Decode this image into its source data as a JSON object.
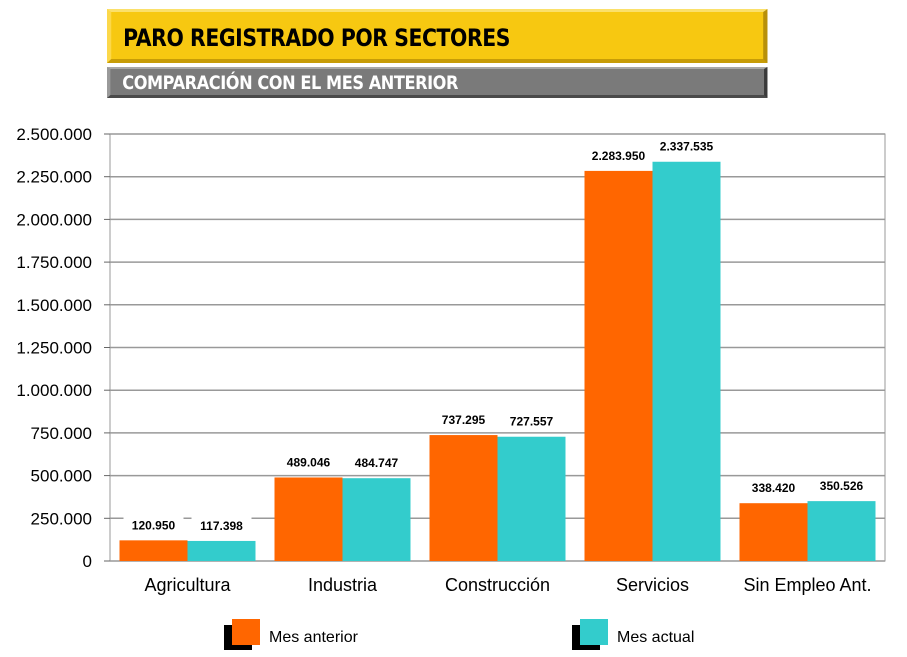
{
  "chart_data": {
    "type": "bar",
    "title": "PARO REGISTRADO POR SECTORES",
    "subtitle": "COMPARACIÓN CON EL MES ANTERIOR",
    "categories": [
      "Agricultura",
      "Industria",
      "Construcción",
      "Servicios",
      "Sin Empleo Ant."
    ],
    "series": [
      {
        "name": "Mes anterior",
        "color": "#ff6600",
        "values": [
          120950,
          489046,
          737295,
          2283950,
          338420
        ],
        "labels": [
          "120.950",
          "489.046",
          "737.295",
          "2.283.950",
          "338.420"
        ]
      },
      {
        "name": "Mes actual",
        "color": "#33cccc",
        "values": [
          117398,
          484747,
          727557,
          2337535,
          350526
        ],
        "labels": [
          "117.398",
          "484.747",
          "727.557",
          "2.337.535",
          "350.526"
        ]
      }
    ],
    "ylim": [
      0,
      2500000
    ],
    "yticks": [
      "0",
      "250.000",
      "500.000",
      "750.000",
      "1.000.000",
      "1.250.000",
      "1.500.000",
      "1.750.000",
      "2.000.000",
      "2.250.000",
      "2.500.000"
    ],
    "grid": true,
    "legend": "bottom"
  }
}
